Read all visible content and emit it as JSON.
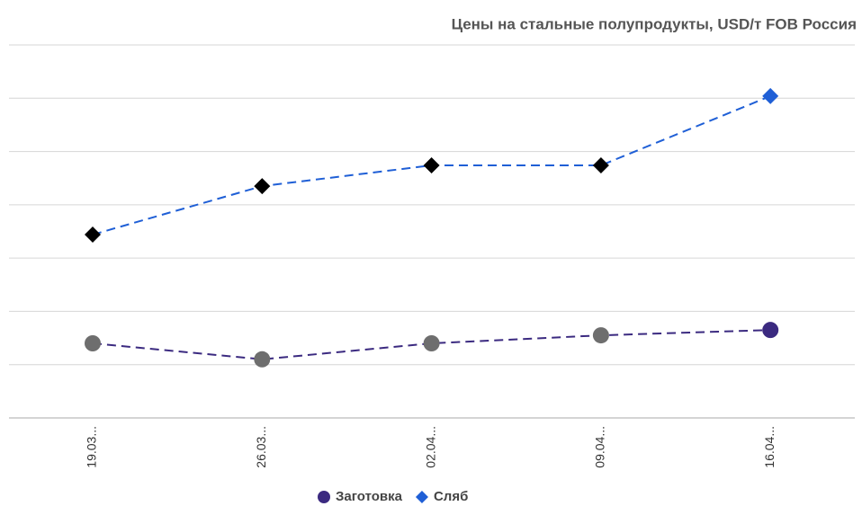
{
  "chart_data": {
    "type": "line",
    "title": "Цены на стальные полупродукты, USD/т FOB Россия",
    "categories": [
      "19.03...",
      "26.03...",
      "02.04...",
      "09.04...",
      "16.04..."
    ],
    "series": [
      {
        "name": "Заготовка",
        "color": "#3b2a80",
        "marker": "circle",
        "marker_color": "#6e6e6e",
        "values": [
          1.4,
          1.1,
          1.4,
          1.55,
          1.65
        ]
      },
      {
        "name": "Сляб",
        "color": "#1f5fd6",
        "marker": "diamond",
        "marker_color": "#000000",
        "values": [
          3.44,
          4.35,
          4.74,
          4.74,
          6.04
        ]
      }
    ],
    "ylim": [
      0,
      7
    ],
    "yticks": [
      0,
      1,
      2,
      3,
      4,
      5,
      6,
      7
    ],
    "grid": true,
    "legend": "bottom"
  }
}
